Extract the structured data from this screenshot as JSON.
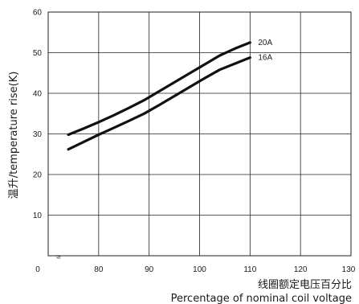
{
  "chart_data": {
    "type": "line",
    "title": "",
    "xlabel_cn": "线圈额定电压百分比",
    "xlabel_en": "Percentage of nominal coil voltage",
    "ylabel": "温升/temperature rise(K)",
    "xlim": [
      70,
      130
    ],
    "ylim": [
      0,
      60
    ],
    "x_ticks": [
      "0",
      "80",
      "90",
      "100",
      "110",
      "120",
      "130"
    ],
    "y_ticks": [
      "10",
      "20",
      "30",
      "40",
      "50",
      "60"
    ],
    "axis_break_marker": "≈",
    "grid": true,
    "colors": {
      "line": "#111111",
      "grid": "#222222",
      "text": "#1a1a1a"
    },
    "series": [
      {
        "name": "20A",
        "x": [
          74,
          77,
          80,
          83,
          86,
          89,
          92,
          95,
          98,
          101,
          104,
          107,
          110
        ],
        "y": [
          29.8,
          31.3,
          32.9,
          34.6,
          36.4,
          38.3,
          40.5,
          42.7,
          44.9,
          47.1,
          49.3,
          51.0,
          52.5
        ]
      },
      {
        "name": "16A",
        "x": [
          74,
          77,
          80,
          83,
          86,
          89,
          92,
          95,
          98,
          101,
          104,
          107,
          110
        ],
        "y": [
          26.2,
          28.0,
          29.8,
          31.5,
          33.2,
          35.0,
          37.1,
          39.3,
          41.5,
          43.7,
          45.8,
          47.3,
          48.8
        ]
      }
    ]
  }
}
